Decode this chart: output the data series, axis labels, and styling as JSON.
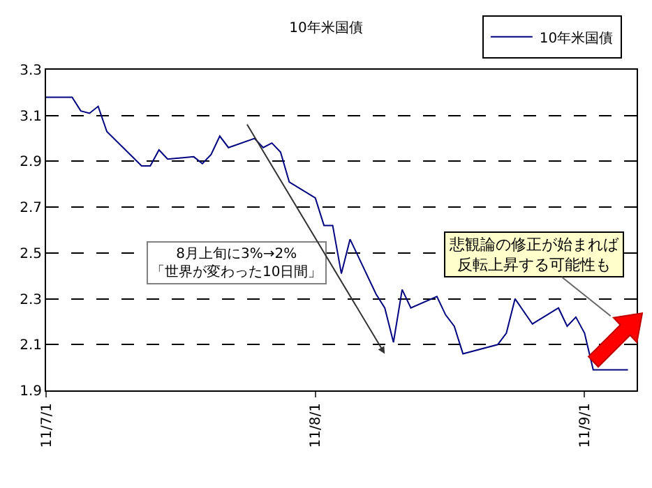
{
  "chart_data": {
    "type": "line",
    "title": "10年米国債",
    "x": [
      "--07-01",
      "--07-04",
      "--07-05",
      "--07-06",
      "--07-07",
      "--07-08",
      "--07-12",
      "--07-13",
      "--07-14",
      "--07-15",
      "--07-18",
      "--07-19",
      "--07-20",
      "--07-21",
      "--07-22",
      "--07-25",
      "--07-26",
      "--07-27",
      "--07-28",
      "--07-29",
      "--08-01",
      "--08-02",
      "--08-03",
      "--08-04",
      "--08-05",
      "--08-08",
      "--08-09",
      "--08-10",
      "--08-11",
      "--08-12",
      "--08-15",
      "--08-16",
      "--08-17",
      "--08-18",
      "--08-22",
      "--08-23",
      "--08-24",
      "--08-26",
      "--08-29",
      "--08-30",
      "--08-31",
      "--09-01",
      "--09-02",
      "--09-06"
    ],
    "series": [
      {
        "name": "10年米国債",
        "color": "#000080",
        "values": [
          3.18,
          3.18,
          3.12,
          3.11,
          3.14,
          3.03,
          2.88,
          2.88,
          2.95,
          2.91,
          2.92,
          2.89,
          2.93,
          3.01,
          2.96,
          3.0,
          2.96,
          2.98,
          2.94,
          2.81,
          2.74,
          2.62,
          2.62,
          2.41,
          2.56,
          2.32,
          2.26,
          2.11,
          2.34,
          2.26,
          2.31,
          2.23,
          2.18,
          2.06,
          2.1,
          2.15,
          2.3,
          2.19,
          2.26,
          2.18,
          2.22,
          2.15,
          1.99,
          1.99
        ]
      }
    ],
    "xlim": [
      "--07-01",
      "--09-07"
    ],
    "xticks": [
      {
        "value": "--07-01",
        "label": "11/7/1"
      },
      {
        "value": "--08-01",
        "label": "11/8/1"
      },
      {
        "value": "--09-01",
        "label": "11/9/1"
      }
    ],
    "ylim": [
      1.9,
      3.3
    ],
    "yticks": [
      1.9,
      2.1,
      2.3,
      2.5,
      2.7,
      2.9,
      3.1,
      3.3
    ],
    "grid": "y",
    "legend": "top right",
    "marker": "none",
    "line_style": "solid",
    "annotations": [
      "8月上旬に3%→2%「世界が変わった10日間」",
      "悲観論の修正が始まれば反転上昇する可能性も"
    ]
  }
}
